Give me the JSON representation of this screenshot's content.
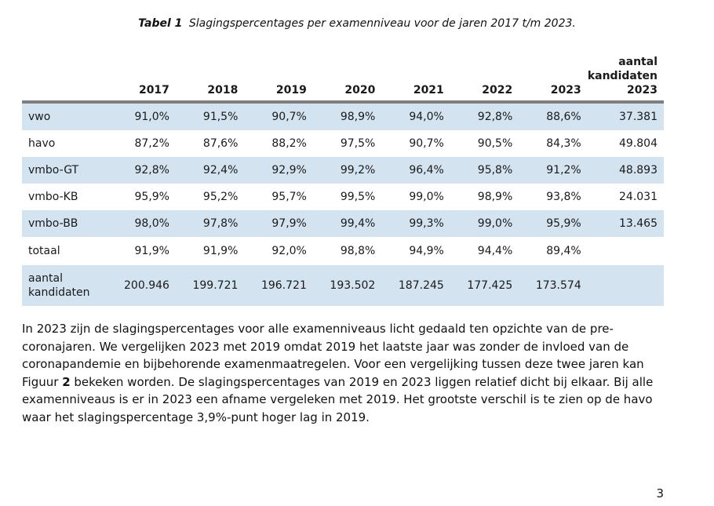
{
  "caption": {
    "label": "Tabel  1",
    "text": "Slagingspercentages per examenniveau voor de jaren 2017 t/m 2023."
  },
  "table": {
    "headers": [
      "",
      "2017",
      "2018",
      "2019",
      "2020",
      "2021",
      "2022",
      "2023",
      "aantal kandidaten 2023"
    ],
    "rows": [
      {
        "name": "vwo",
        "values": [
          "91,0%",
          "91,5%",
          "90,7%",
          "98,9%",
          "94,0%",
          "92,8%",
          "88,6%",
          "37.381"
        ]
      },
      {
        "name": "havo",
        "values": [
          "87,2%",
          "87,6%",
          "88,2%",
          "97,5%",
          "90,7%",
          "90,5%",
          "84,3%",
          "49.804"
        ]
      },
      {
        "name": "vmbo-GT",
        "values": [
          "92,8%",
          "92,4%",
          "92,9%",
          "99,2%",
          "96,4%",
          "95,8%",
          "91,2%",
          "48.893"
        ]
      },
      {
        "name": "vmbo-KB",
        "values": [
          "95,9%",
          "95,2%",
          "95,7%",
          "99,5%",
          "99,0%",
          "98,9%",
          "93,8%",
          "24.031"
        ]
      },
      {
        "name": "vmbo-BB",
        "values": [
          "98,0%",
          "97,8%",
          "97,9%",
          "99,4%",
          "99,3%",
          "99,0%",
          "95,9%",
          "13.465"
        ]
      },
      {
        "name": "totaal",
        "values": [
          "91,9%",
          "91,9%",
          "92,0%",
          "98,8%",
          "94,9%",
          "94,4%",
          "89,4%",
          ""
        ]
      },
      {
        "name": "aantal kandidaten",
        "values": [
          "200.946",
          "199.721",
          "196.721",
          "193.502",
          "187.245",
          "177.425",
          "173.574",
          ""
        ]
      }
    ]
  },
  "paragraph": {
    "before_bold": "In 2023 zijn de slagingspercentages voor alle examenniveaus licht gedaald ten opzichte van de pre-coronajaren. We vergelijken 2023 met 2019 omdat 2019 het laatste jaar was zonder de invloed van de coronapandemie en bijbehorende examenmaatregelen. Voor een vergelijking tussen deze twee jaren kan Figuur ",
    "bold": "2",
    "after_bold": " bekeken worden. De slagingspercentages van 2019 en 2023 liggen relatief dicht bij elkaar. Bij alle examenniveaus is er in 2023 een afname vergeleken met 2019. Het grootste verschil is te zien op de havo waar het slagingspercentage 3,9%-punt hoger lag in 2019."
  },
  "page_number": "3",
  "colors": {
    "row_shade": "#d3e3f0",
    "header_rule": "#7f7f7f"
  }
}
